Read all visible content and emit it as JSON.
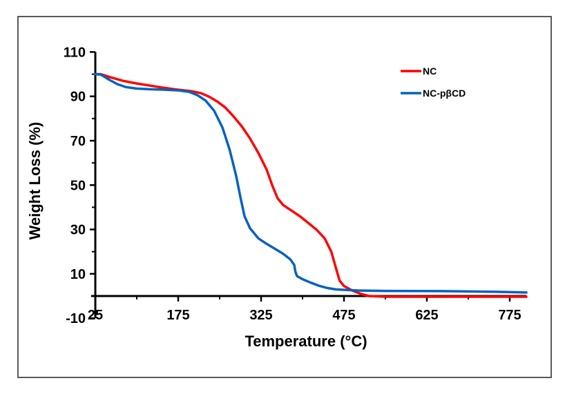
{
  "chart_data": {
    "type": "line",
    "title": "",
    "xlabel": "Temperature (°C)",
    "ylabel": "Weight Loss (%)",
    "xlim": [
      25,
      805
    ],
    "ylim": [
      -10,
      110
    ],
    "x_ticks": [
      25,
      175,
      325,
      475,
      625,
      775
    ],
    "x_minor_ticks": [
      100,
      250,
      400,
      550,
      700
    ],
    "y_ticks": [
      110,
      90,
      70,
      50,
      30,
      10,
      -10
    ],
    "y_minor_ticks": [
      100,
      80,
      60,
      40,
      20,
      0
    ],
    "x_axis_crosses_at_y": 0,
    "grid": false,
    "legend_position": "top-right",
    "series": [
      {
        "name": "NC",
        "color": "#ff0000",
        "points": [
          [
            25,
            100
          ],
          [
            35,
            100
          ],
          [
            50,
            98.8
          ],
          [
            75,
            97
          ],
          [
            100,
            95.8
          ],
          [
            125,
            94.8
          ],
          [
            150,
            93.8
          ],
          [
            175,
            93
          ],
          [
            200,
            92.3
          ],
          [
            215,
            91.5
          ],
          [
            230,
            90
          ],
          [
            245,
            87.8
          ],
          [
            260,
            85
          ],
          [
            275,
            81
          ],
          [
            290,
            76.5
          ],
          [
            305,
            71
          ],
          [
            320,
            64.5
          ],
          [
            335,
            57
          ],
          [
            345,
            50
          ],
          [
            355,
            44
          ],
          [
            365,
            41
          ],
          [
            380,
            38.5
          ],
          [
            395,
            36
          ],
          [
            410,
            33
          ],
          [
            425,
            30
          ],
          [
            440,
            26
          ],
          [
            452,
            20
          ],
          [
            460,
            13
          ],
          [
            467,
            7
          ],
          [
            475,
            4.5
          ],
          [
            490,
            2.5
          ],
          [
            505,
            1
          ],
          [
            520,
            0
          ],
          [
            550,
            -0.3
          ],
          [
            600,
            -0.3
          ],
          [
            700,
            -0.3
          ],
          [
            805,
            -0.3
          ]
        ]
      },
      {
        "name": "NC-pβCD",
        "color": "#0062c0",
        "points": [
          [
            25,
            100
          ],
          [
            35,
            99.8
          ],
          [
            50,
            97.5
          ],
          [
            65,
            95.5
          ],
          [
            80,
            94.2
          ],
          [
            100,
            93.5
          ],
          [
            125,
            93.2
          ],
          [
            150,
            93
          ],
          [
            175,
            92.7
          ],
          [
            195,
            92
          ],
          [
            210,
            90.5
          ],
          [
            225,
            88
          ],
          [
            240,
            83.5
          ],
          [
            255,
            76
          ],
          [
            268,
            66
          ],
          [
            280,
            54
          ],
          [
            288,
            44
          ],
          [
            295,
            36
          ],
          [
            305,
            30.5
          ],
          [
            320,
            26
          ],
          [
            335,
            23.5
          ],
          [
            350,
            21.3
          ],
          [
            365,
            19
          ],
          [
            378,
            16.5
          ],
          [
            385,
            14
          ],
          [
            387,
            11
          ],
          [
            390,
            9
          ],
          [
            400,
            7.6
          ],
          [
            415,
            6
          ],
          [
            430,
            4.6
          ],
          [
            445,
            3.6
          ],
          [
            460,
            3
          ],
          [
            480,
            2.7
          ],
          [
            500,
            2.5
          ],
          [
            550,
            2.3
          ],
          [
            650,
            2.2
          ],
          [
            750,
            1.9
          ],
          [
            805,
            1.6
          ]
        ]
      }
    ]
  }
}
